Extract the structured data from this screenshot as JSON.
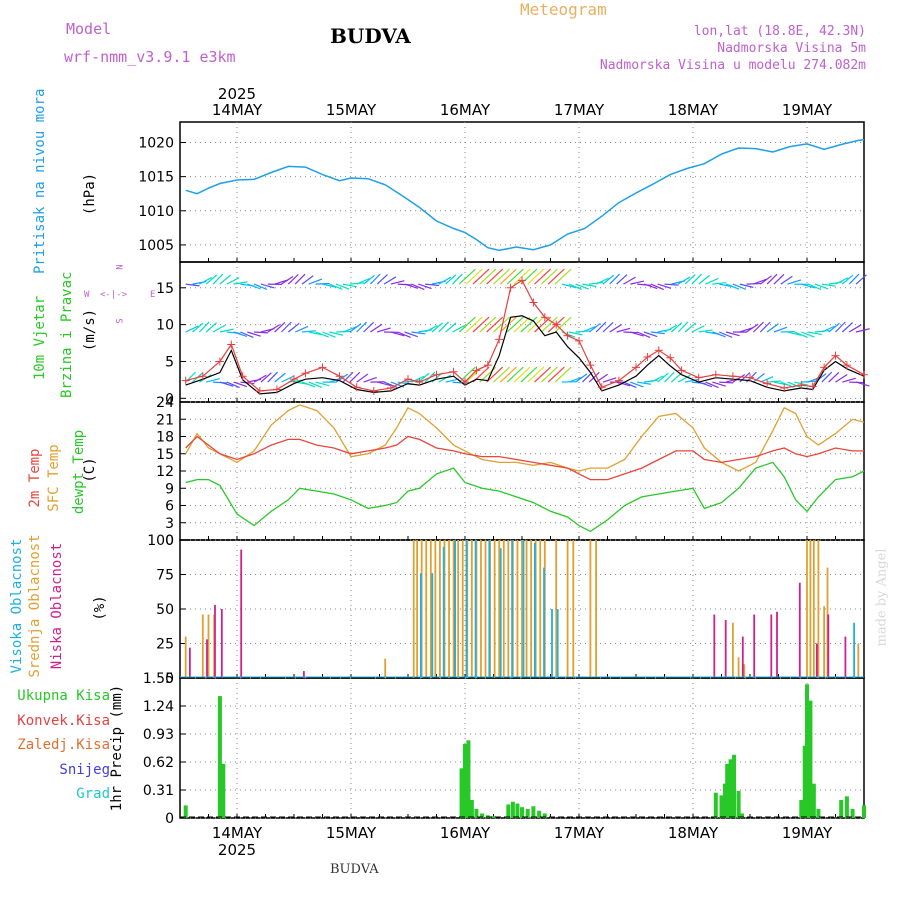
{
  "header": {
    "model_label": "Model",
    "model_name": "wrf-nmm_v3.9.1  e3km",
    "location": "BUDVA",
    "meteogram": "Meteogram",
    "lonlat": "lon,lat (18.8E, 42.3N)",
    "elevation": "Nadmorska Visina 5m",
    "model_elevation": "Nadmorska Visina u modelu 274.082m",
    "footer_location": "BUDVA",
    "credit": "made by Angel"
  },
  "colors": {
    "pressure": "#1ea0e6",
    "temp2m": "#e8463c",
    "sfc": "#e0a030",
    "dewpt": "#28c828",
    "wind_speed": "#000000",
    "gust": "#e84040",
    "high_cloud": "#20b0e0",
    "mid_cloud": "#e0a030",
    "low_cloud": "#d0208c",
    "total_precip": "#28c828",
    "conv_precip": "#e84040",
    "frozen_precip": "#e07030",
    "snow": "#4040e0",
    "hail": "#20c8c8",
    "title": "#000000",
    "magenta": "#c060d0"
  },
  "chart_data": [
    {
      "type": "line",
      "id": "pressure",
      "ylabel": "Pritisak na nivou mora",
      "units": "(hPa)",
      "ylim": [
        1002.5,
        1023
      ],
      "yticks": [
        1005,
        1010,
        1015,
        1020
      ],
      "x_days": [
        13.55,
        13.65,
        13.75,
        13.85,
        14.0,
        14.15,
        14.3,
        14.45,
        14.6,
        14.75,
        14.9,
        15.0,
        15.15,
        15.3,
        15.45,
        15.6,
        15.75,
        15.9,
        16.0,
        16.1,
        16.2,
        16.3,
        16.45,
        16.6,
        16.75,
        16.9,
        17.05,
        17.2,
        17.35,
        17.5,
        17.65,
        17.8,
        17.95,
        18.1,
        18.25,
        18.4,
        18.55,
        18.7,
        18.85,
        19.0,
        19.15,
        19.3,
        19.45,
        19.5
      ],
      "values": [
        1013.0,
        1012.5,
        1013.3,
        1014.0,
        1014.5,
        1014.6,
        1015.6,
        1016.5,
        1016.4,
        1015.3,
        1014.4,
        1014.8,
        1014.7,
        1013.8,
        1012.2,
        1010.5,
        1008.5,
        1007.4,
        1006.8,
        1005.8,
        1004.6,
        1004.2,
        1004.7,
        1004.3,
        1005.0,
        1006.6,
        1007.4,
        1009.2,
        1011.2,
        1012.6,
        1013.9,
        1015.3,
        1016.2,
        1016.9,
        1018.3,
        1019.2,
        1019.1,
        1018.6,
        1019.4,
        1019.8,
        1019.0,
        1019.7,
        1020.3,
        1020.4
      ]
    },
    {
      "type": "line",
      "id": "wind",
      "ylabel": "10m Vjetar",
      "ylabel2": "Brzina i Pravac",
      "units": "(m/s)",
      "compass": [
        "N",
        "W",
        "<-|->",
        "E",
        "S"
      ],
      "ylim": [
        -0.5,
        18.5
      ],
      "yticks": [
        0,
        5,
        10,
        15
      ],
      "x_days": [
        13.55,
        13.7,
        13.85,
        13.95,
        14.05,
        14.2,
        14.35,
        14.5,
        14.6,
        14.75,
        14.9,
        15.05,
        15.2,
        15.35,
        15.5,
        15.6,
        15.75,
        15.9,
        16.0,
        16.1,
        16.2,
        16.3,
        16.4,
        16.5,
        16.6,
        16.7,
        16.8,
        16.9,
        17.0,
        17.1,
        17.2,
        17.35,
        17.5,
        17.6,
        17.7,
        17.8,
        17.9,
        18.05,
        18.2,
        18.35,
        18.5,
        18.65,
        18.8,
        18.95,
        19.05,
        19.15,
        19.25,
        19.35,
        19.5
      ],
      "speed": [
        1.8,
        2.6,
        3.5,
        6.5,
        2.5,
        0.6,
        0.8,
        2.0,
        2.6,
        2.8,
        2.4,
        1.2,
        0.8,
        1.0,
        2.0,
        1.8,
        2.6,
        3.0,
        1.8,
        2.6,
        2.4,
        5.8,
        11.0,
        11.2,
        10.5,
        8.5,
        9.0,
        7.0,
        5.5,
        3.5,
        1.0,
        1.8,
        3.0,
        4.5,
        5.8,
        4.4,
        3.2,
        2.2,
        2.8,
        2.6,
        2.4,
        1.5,
        1.0,
        1.4,
        1.2,
        3.8,
        5.0,
        4.0,
        3.0
      ],
      "gust": [
        2.4,
        3.0,
        5.0,
        7.3,
        3.0,
        1.0,
        1.2,
        2.6,
        3.4,
        4.2,
        3.0,
        1.5,
        1.0,
        1.4,
        2.6,
        2.2,
        3.2,
        3.6,
        2.2,
        3.8,
        4.5,
        8.0,
        15.0,
        16.0,
        13.0,
        11.0,
        10.0,
        8.5,
        7.8,
        4.5,
        1.5,
        2.4,
        4.2,
        5.6,
        6.5,
        5.5,
        3.8,
        2.8,
        3.2,
        3.0,
        2.8,
        2.0,
        1.4,
        1.8,
        1.6,
        4.2,
        5.8,
        4.5,
        3.2
      ]
    },
    {
      "type": "line",
      "id": "temperature",
      "ylabel": "2m Temp",
      "ylabel2": "SFC Temp",
      "ylabel3": "dewpt Temp",
      "units": "(C)",
      "ylim": [
        0,
        24
      ],
      "yticks": [
        0,
        3,
        6,
        9,
        12,
        15,
        18,
        21,
        24
      ],
      "x_days": [
        13.55,
        13.65,
        13.75,
        13.85,
        14.0,
        14.15,
        14.3,
        14.45,
        14.55,
        14.7,
        14.85,
        15.0,
        15.15,
        15.3,
        15.4,
        15.5,
        15.6,
        15.75,
        15.9,
        16.0,
        16.15,
        16.3,
        16.45,
        16.6,
        16.75,
        16.9,
        17.0,
        17.1,
        17.25,
        17.4,
        17.55,
        17.7,
        17.85,
        18.0,
        18.1,
        18.25,
        18.4,
        18.55,
        18.7,
        18.8,
        18.9,
        19.0,
        19.1,
        19.25,
        19.4,
        19.5
      ],
      "t2m": [
        16.0,
        18.0,
        16.5,
        15.0,
        14.0,
        15.0,
        16.5,
        17.5,
        17.5,
        16.5,
        16.0,
        15.0,
        15.5,
        16.0,
        16.5,
        18.0,
        17.5,
        16.0,
        15.5,
        15.0,
        14.5,
        14.5,
        14.0,
        13.5,
        13.0,
        12.5,
        11.5,
        10.5,
        10.5,
        11.5,
        12.5,
        14.0,
        15.5,
        15.5,
        14.0,
        13.5,
        14.0,
        14.5,
        15.5,
        16.0,
        15.0,
        14.5,
        15.0,
        16.0,
        15.5,
        15.5
      ],
      "sfc": [
        15.0,
        18.5,
        16.0,
        15.0,
        13.5,
        15.5,
        20.0,
        22.5,
        23.5,
        22.5,
        19.5,
        14.5,
        15.0,
        16.5,
        19.5,
        23.0,
        22.0,
        19.5,
        16.5,
        15.5,
        14.0,
        13.5,
        13.5,
        13.0,
        13.5,
        12.5,
        12.0,
        12.5,
        12.5,
        14.0,
        18.0,
        21.5,
        22.0,
        19.5,
        16.0,
        13.5,
        12.0,
        13.5,
        19.0,
        23.0,
        22.0,
        18.0,
        16.5,
        18.5,
        21.0,
        20.5
      ],
      "dewpt": [
        10.0,
        10.5,
        10.5,
        9.5,
        4.5,
        2.5,
        5.0,
        7.0,
        9.0,
        8.5,
        8.0,
        7.0,
        5.5,
        6.0,
        6.5,
        8.5,
        9.0,
        11.5,
        12.5,
        10.0,
        9.0,
        8.5,
        7.5,
        6.5,
        5.0,
        4.0,
        2.5,
        1.5,
        3.5,
        6.0,
        7.5,
        8.0,
        8.5,
        9.0,
        5.5,
        6.5,
        9.0,
        12.5,
        13.5,
        11.0,
        7.0,
        5.0,
        7.5,
        10.5,
        11.0,
        12.0
      ]
    },
    {
      "type": "bar",
      "id": "clouds",
      "ylabel": "Visoka Oblacnost",
      "ylabel2": "Srednja Oblacnost",
      "ylabel3": "Niska Oblacnost",
      "units": "(%)",
      "ylim": [
        0,
        100
      ],
      "yticks": [
        0,
        25,
        50,
        75,
        100
      ],
      "low": {
        "x": [
          13.6,
          13.75,
          13.82,
          13.88,
          14.05,
          14.6,
          18.2,
          18.3,
          18.45,
          18.55,
          18.7,
          18.75,
          18.95,
          19.1,
          19.2,
          19.35
        ],
        "values": [
          22,
          28,
          53,
          50,
          93,
          5,
          46,
          42,
          30,
          46,
          46,
          48,
          69,
          25,
          46,
          30
        ]
      },
      "mid": {
        "x": [
          13.55,
          13.7,
          13.75,
          13.8,
          15.3,
          15.55,
          15.58,
          15.62,
          15.66,
          15.7,
          15.74,
          15.78,
          15.82,
          15.86,
          15.9,
          15.94,
          15.98,
          16.02,
          16.06,
          16.1,
          16.14,
          16.18,
          16.22,
          16.26,
          16.3,
          16.34,
          16.38,
          16.42,
          16.46,
          16.5,
          16.54,
          16.58,
          16.62,
          16.66,
          16.7,
          16.8,
          16.9,
          16.95,
          17.1,
          17.15,
          18.35,
          18.4,
          18.45,
          19.0,
          19.03,
          19.06,
          19.1,
          19.15,
          19.18,
          19.45
        ],
        "values": [
          30,
          46,
          46,
          46,
          14,
          100,
          100,
          100,
          100,
          100,
          100,
          100,
          100,
          100,
          100,
          100,
          100,
          100,
          100,
          100,
          100,
          100,
          100,
          100,
          100,
          100,
          100,
          100,
          100,
          100,
          100,
          100,
          100,
          100,
          100,
          100,
          100,
          100,
          100,
          100,
          40,
          15,
          10,
          100,
          100,
          100,
          100,
          52,
          80,
          25
        ]
      },
      "high": {
        "x": [
          15.6,
          15.7,
          15.8,
          15.9,
          16.0,
          16.08,
          16.2,
          16.3,
          16.4,
          16.5,
          16.6,
          16.68,
          16.75,
          16.8,
          19.4
        ],
        "values": [
          76,
          76,
          95,
          100,
          100,
          100,
          100,
          94,
          100,
          100,
          98,
          80,
          50,
          50,
          40
        ]
      }
    },
    {
      "type": "bar",
      "id": "precip",
      "ylabel": "1hr Precip (mm)",
      "ylim": [
        0,
        1.55
      ],
      "yticks": [
        0,
        0.31,
        0.62,
        0.93,
        1.24,
        1.55
      ],
      "ytick_labels": [
        "0",
        "0.31",
        "0.62",
        "0.93",
        "1.24",
        "1.55"
      ],
      "legend": [
        "Ukupna Kisa",
        "Konvek.Kisa",
        "Zaledj.Kisa",
        "Snijeg",
        "Grad"
      ],
      "total": {
        "x": [
          13.55,
          13.85,
          13.88,
          15.97,
          16.0,
          16.03,
          16.06,
          16.1,
          16.15,
          16.2,
          16.25,
          16.38,
          16.42,
          16.46,
          16.5,
          16.55,
          16.6,
          16.65,
          16.7,
          18.2,
          18.25,
          18.28,
          18.3,
          18.33,
          18.36,
          18.4,
          18.43,
          18.95,
          18.98,
          19.0,
          19.03,
          19.06,
          19.1,
          19.3,
          19.35,
          19.4,
          19.5
        ],
        "values": [
          0.14,
          1.35,
          0.6,
          0.55,
          0.82,
          0.86,
          0.2,
          0.1,
          0.05,
          0.03,
          0.02,
          0.15,
          0.18,
          0.16,
          0.12,
          0.1,
          0.13,
          0.08,
          0.05,
          0.28,
          0.25,
          0.38,
          0.6,
          0.65,
          0.7,
          0.3,
          0.05,
          0.2,
          0.8,
          1.48,
          1.3,
          0.38,
          0.1,
          0.2,
          0.24,
          0.1,
          0.14
        ]
      }
    }
  ],
  "xaxis": {
    "year": "2025",
    "days": [
      "14MAY",
      "15MAY",
      "16MAY",
      "17MAY",
      "18MAY",
      "19MAY"
    ]
  }
}
